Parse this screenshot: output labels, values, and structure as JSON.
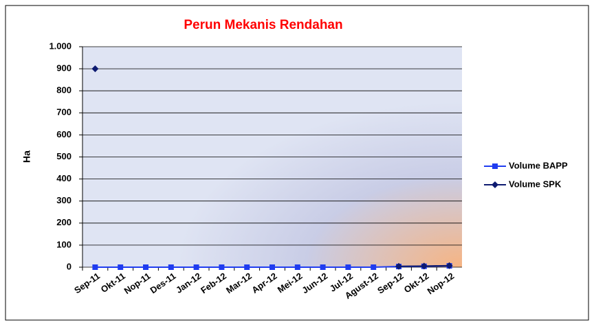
{
  "chart_data": {
    "type": "line",
    "title": "Perun Mekanis Rendahan",
    "y_label": "Ha",
    "categories": [
      "Sep-11",
      "Okt-11",
      "Nop-11",
      "Des-11",
      "Jan-12",
      "Feb-12",
      "Mar-12",
      "Apr-12",
      "Mei-12",
      "Jun-12",
      "Jul-12",
      "Agust-12",
      "Sep-12",
      "Okt-12",
      "Nop-12"
    ],
    "series": [
      {
        "name": "Volume BAPP",
        "color": "#1f3cf0",
        "marker": "square",
        "values": [
          0,
          0,
          0,
          0,
          0,
          0,
          0,
          0,
          0,
          0,
          0,
          0,
          3,
          4,
          6
        ]
      },
      {
        "name": "Volume SPK",
        "color": "#0d1a70",
        "marker": "diamond",
        "values": [
          900,
          null,
          null,
          null,
          null,
          null,
          null,
          null,
          null,
          null,
          null,
          null,
          4,
          5,
          7
        ]
      }
    ],
    "ylim": [
      0,
      1000
    ],
    "yticks": [
      0,
      100,
      200,
      300,
      400,
      500,
      600,
      700,
      800,
      900,
      {
        "value": 1000,
        "label": "1.000"
      }
    ],
    "grid": true,
    "legend": "right"
  }
}
